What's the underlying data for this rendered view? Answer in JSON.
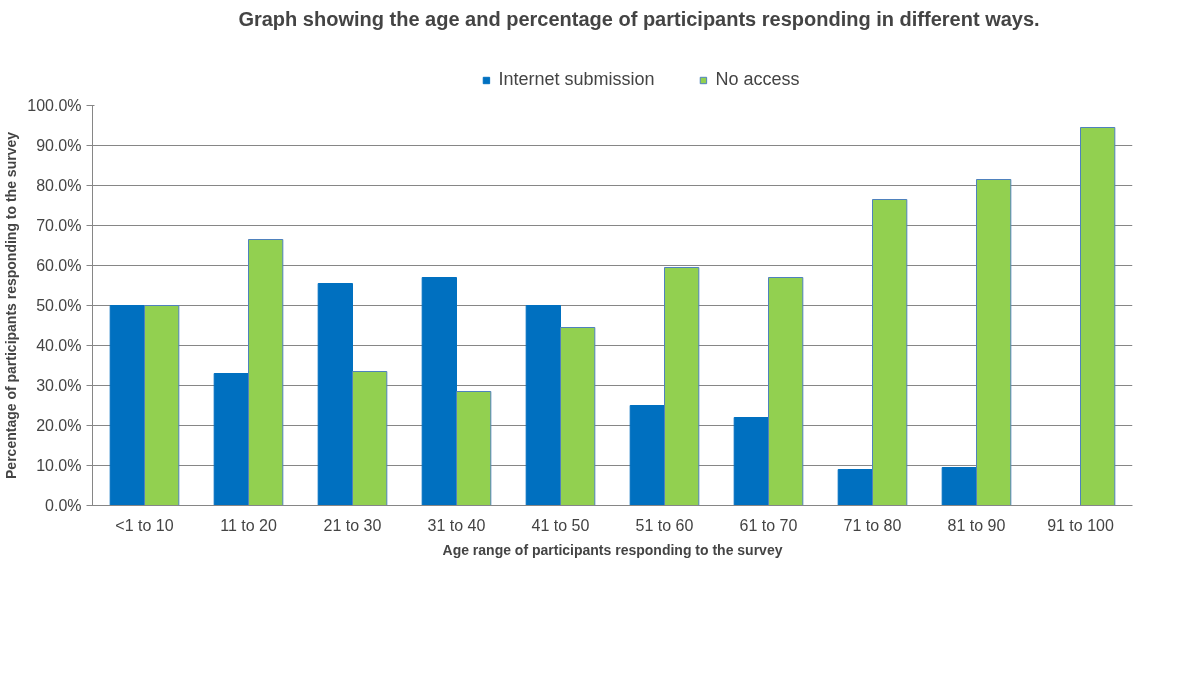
{
  "chart_data": {
    "type": "bar",
    "title": "Graph showing the age and percentage of participants responding in different ways.",
    "xlabel": "Age range of participants responding to the survey",
    "ylabel": "Percentage of participants responding to the survey",
    "categories": [
      "<1 to 10",
      "11 to 20",
      "21 to 30",
      "31 to 40",
      "41 to 50",
      "51 to 60",
      "61 to 70",
      "71 to 80",
      "81 to 90",
      "91 to 100"
    ],
    "series": [
      {
        "name": "Internet submission",
        "color": "#0070c0",
        "values": [
          50,
          33,
          55.5,
          57,
          50,
          25,
          22,
          9,
          9.5,
          0
        ]
      },
      {
        "name": "No access",
        "color": "#92d050",
        "values": [
          50,
          66.5,
          33.5,
          28.5,
          44.5,
          59.5,
          57,
          76.5,
          81.5,
          94.5
        ]
      }
    ],
    "ylim": [
      0,
      100
    ],
    "yticks": [
      {
        "value": 0,
        "label": "0.0%"
      },
      {
        "value": 10,
        "label": "10.0%"
      },
      {
        "value": 20,
        "label": "20.0%"
      },
      {
        "value": 30,
        "label": "30.0%"
      },
      {
        "value": 40,
        "label": "40.0%"
      },
      {
        "value": 50,
        "label": "50.0%"
      },
      {
        "value": 60,
        "label": "60.0%"
      },
      {
        "value": 70,
        "label": "70.0%"
      },
      {
        "value": 80,
        "label": "80.0%"
      },
      {
        "value": 90,
        "label": "90.0%"
      },
      {
        "value": 100,
        "label": "100.0%"
      }
    ],
    "grid": "y",
    "legend": "top"
  }
}
